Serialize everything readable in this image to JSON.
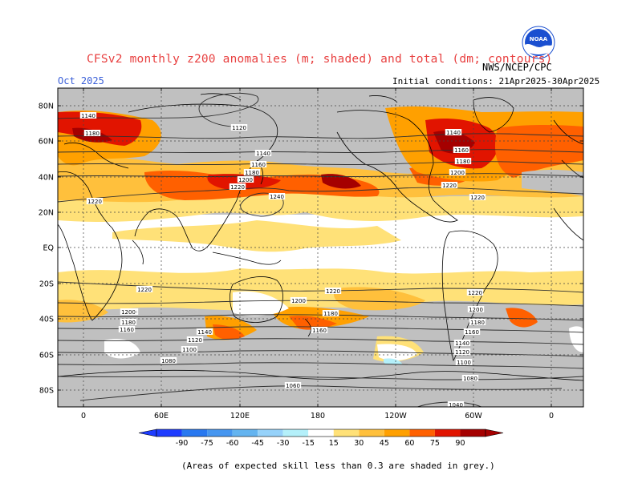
{
  "header": {
    "title": "CFSv2 monthly z200 anomalies (m; shaded) and total (dm; contours)",
    "period": "Oct 2025",
    "agency": "NWS/NCEP/CPC",
    "initial_conditions": "Initial conditions: 21Apr2025-30Apr2025",
    "logo_text": "NOAA"
  },
  "footer": {
    "note": "(Areas of expected skill less than 0.3 are shaded in grey.)"
  },
  "map": {
    "lat_labels": [
      "80N",
      "60N",
      "40N",
      "20N",
      "EQ",
      "20S",
      "40S",
      "60S",
      "80S"
    ],
    "lon_labels": [
      "0",
      "60E",
      "120E",
      "180",
      "120W",
      "60W",
      "0"
    ],
    "colorbar": {
      "ticks": [
        "-90",
        "-75",
        "-60",
        "-45",
        "-30",
        "-15",
        "15",
        "30",
        "45",
        "60",
        "75",
        "90"
      ],
      "colors": [
        "#1e3cff",
        "#2878f0",
        "#4696f0",
        "#64b4f0",
        "#96d2fa",
        "#b4f0fa",
        "#ffffff",
        "#ffe178",
        "#ffc03c",
        "#ffa000",
        "#ff6000",
        "#e11400",
        "#a50000"
      ]
    },
    "contour_labels": {
      "nh": [
        "1140",
        "1180",
        "1120",
        "1140",
        "1160",
        "1180",
        "1200",
        "1220",
        "1240",
        "1220",
        "1140",
        "1160",
        "1180",
        "1200",
        "1220",
        "1220"
      ],
      "sh": [
        "1220",
        "1220",
        "1220",
        "1200",
        "1200",
        "1180",
        "1160",
        "1140",
        "1120",
        "1100",
        "1080",
        "1200",
        "1180",
        "1160",
        "1200",
        "1180",
        "1160",
        "1140",
        "1120",
        "1100",
        "1080",
        "1060",
        "1040"
      ]
    }
  }
}
